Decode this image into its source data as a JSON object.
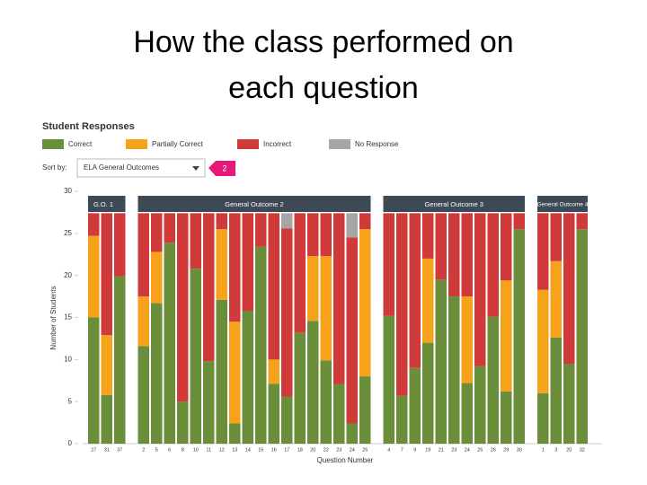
{
  "title": "How the class performed on each question",
  "panel": {
    "heading": "Student Responses",
    "sort_label": "Sort by:",
    "sort_value": "ELA General Outcomes",
    "badge": "2"
  },
  "chart_data": {
    "type": "stacked-bar",
    "y_label": "Number of Students",
    "x_label": "Question Number",
    "ylim": [
      0,
      30
    ],
    "yticks": [
      0,
      5,
      10,
      15,
      20,
      25,
      30
    ],
    "groups": [
      {
        "label": "G.O. 1",
        "categories": [
          "27",
          "31",
          "37"
        ]
      },
      {
        "label": "General Outcome 2",
        "categories": [
          "2",
          "5",
          "6",
          "8",
          "10",
          "11",
          "12",
          "13",
          "14",
          "15",
          "16",
          "17",
          "18",
          "20",
          "22",
          "23",
          "24",
          "25"
        ]
      },
      {
        "label": "General Outcome 3",
        "categories": [
          "4",
          "7",
          "9",
          "19",
          "21",
          "23",
          "24",
          "25",
          "26",
          "29",
          "30"
        ]
      },
      {
        "label": "General Outcome 4",
        "categories": [
          "1",
          "3",
          "20",
          "32"
        ]
      }
    ],
    "series": [
      {
        "name": "Correct",
        "color": "#6b8e3a",
        "values": [
          [
            15,
            5.8,
            19.9
          ],
          [
            11.6,
            16.7,
            23.9,
            5,
            20.8,
            9.8,
            17.1,
            2.4,
            15.8,
            23.4,
            7.1,
            5.6,
            13.2,
            14.6,
            9.9,
            7.1,
            2.4,
            8
          ],
          [
            15.2,
            5.7,
            9,
            12,
            19.5,
            17.5,
            7.2,
            9.2,
            15.1,
            6.2,
            25.5
          ],
          [
            6,
            12.6,
            9.5,
            25.5
          ]
        ]
      },
      {
        "name": "Partially Correct",
        "color": "#f7a21b",
        "values": [
          [
            9.7,
            7.1,
            0
          ],
          [
            5.9,
            6.1,
            0,
            0,
            0,
            0,
            8.4,
            12.1,
            0,
            0,
            2.9,
            0,
            0,
            7.7,
            12.4,
            0,
            0,
            17.5
          ],
          [
            0,
            0,
            0,
            10,
            0,
            0,
            10.3,
            0,
            0,
            13.2,
            0
          ],
          [
            12.3,
            9.1,
            0,
            0
          ]
        ]
      },
      {
        "name": "Incorrect",
        "color": "#d13a3a",
        "values": [
          [
            2.7,
            14.5,
            7.5
          ],
          [
            9.9,
            4.6,
            3.5,
            22.4,
            6.6,
            17.6,
            1.9,
            12.9,
            11.6,
            4.0,
            17.4,
            20,
            14.2,
            5.1,
            5.1,
            20.3,
            22.1,
            1.9
          ],
          [
            12.2,
            21.7,
            18.4,
            5.4,
            7.9,
            9.9,
            9.9,
            18.2,
            12.3,
            8,
            1.9
          ],
          [
            9.1,
            5.7,
            17.9,
            1.9
          ]
        ]
      },
      {
        "name": "No Response",
        "color": "#a6a6a6",
        "values": [
          [
            0,
            0,
            0
          ],
          [
            0,
            0,
            0,
            0,
            0,
            0,
            0,
            0,
            0,
            0,
            0,
            1.8,
            0,
            0,
            0,
            0,
            2.9,
            0
          ],
          [
            0,
            0,
            0,
            0,
            0,
            0,
            0,
            0,
            0,
            0,
            0
          ],
          [
            0,
            0,
            0,
            0
          ]
        ]
      }
    ]
  }
}
